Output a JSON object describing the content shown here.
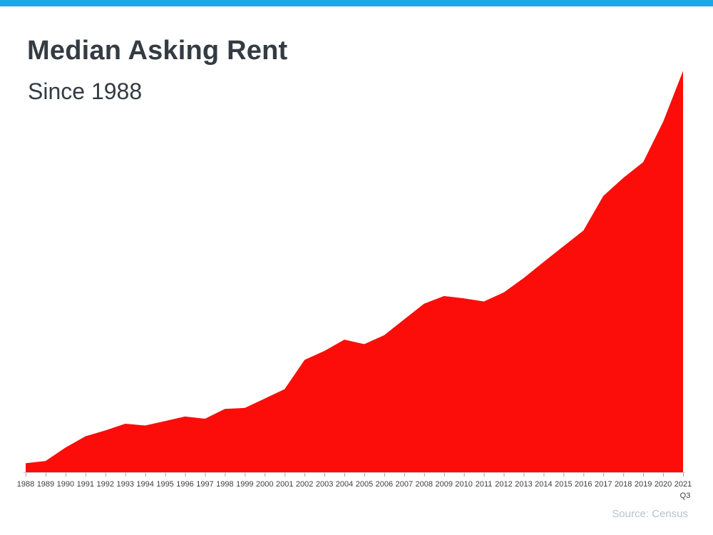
{
  "header": {
    "bar_color": "#18aae8",
    "title": "Median Asking Rent",
    "subtitle": "Since 1988"
  },
  "footer": {
    "source": "Source: Census"
  },
  "chart_data": {
    "type": "area",
    "title": "Median Asking Rent Since 1988",
    "categories": [
      "1988",
      "1989",
      "1990",
      "1991",
      "1992",
      "1993",
      "1994",
      "1995",
      "1996",
      "1997",
      "1998",
      "1999",
      "2000",
      "2001",
      "2002",
      "2003",
      "2004",
      "2005",
      "2006",
      "2007",
      "2008",
      "2009",
      "2010",
      "2011",
      "2012",
      "2013",
      "2014",
      "2015",
      "2016",
      "2017",
      "2018",
      "2019",
      "2020",
      "2021"
    ],
    "last_tick_sublabel": "Q3",
    "series": [
      {
        "name": "Median Asking Rent (USD)",
        "values": [
          330,
          335,
          365,
          390,
          403,
          418,
          414,
          424,
          434,
          429,
          451,
          453,
          474,
          495,
          560,
          580,
          605,
          595,
          615,
          650,
          685,
          702,
          697,
          690,
          710,
          742,
          778,
          813,
          848,
          925,
          965,
          1000,
          1090,
          1203
        ]
      }
    ],
    "xlabel": "",
    "ylabel": "",
    "ylim": [
      310,
      1250
    ],
    "y_axis_visible": false,
    "grid": false,
    "legend": "none",
    "area_color": "#fc0d0a",
    "axis_line_color": "#c9c9c9",
    "tick_color": "#a3a3a3",
    "tick_label_color": "#3d3d3d"
  }
}
